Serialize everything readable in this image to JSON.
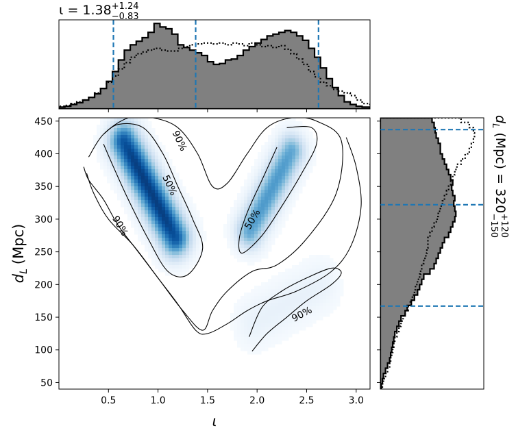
{
  "chart_data": [
    {
      "panel": "top-marginal",
      "type": "histogram",
      "title": "ι = 1.38",
      "title_sup": "+1.24",
      "title_sub": "−0.83",
      "xlim": [
        0.0,
        3.14
      ],
      "bins_x": [
        0.0,
        0.06,
        0.12,
        0.18,
        0.24,
        0.3,
        0.36,
        0.42,
        0.48,
        0.54,
        0.6,
        0.66,
        0.72,
        0.78,
        0.84,
        0.9,
        0.96,
        1.02,
        1.08,
        1.14,
        1.2,
        1.26,
        1.32,
        1.38,
        1.44,
        1.5,
        1.56,
        1.62,
        1.68,
        1.74,
        1.8,
        1.86,
        1.92,
        1.98,
        2.04,
        2.1,
        2.16,
        2.22,
        2.28,
        2.34,
        2.4,
        2.46,
        2.52,
        2.58,
        2.64,
        2.7,
        2.76,
        2.82,
        2.88,
        2.94,
        3.0,
        3.06,
        3.14
      ],
      "series": [
        {
          "fill": "#808080",
          "style": "solid",
          "values": [
            0.02,
            0.03,
            0.05,
            0.07,
            0.1,
            0.13,
            0.17,
            0.23,
            0.31,
            0.42,
            0.55,
            0.66,
            0.72,
            0.76,
            0.8,
            0.86,
            0.96,
            0.92,
            0.9,
            0.84,
            0.72,
            0.69,
            0.66,
            0.63,
            0.6,
            0.53,
            0.5,
            0.51,
            0.55,
            0.56,
            0.6,
            0.66,
            0.7,
            0.74,
            0.78,
            0.82,
            0.84,
            0.86,
            0.88,
            0.86,
            0.82,
            0.77,
            0.68,
            0.58,
            0.46,
            0.34,
            0.24,
            0.15,
            0.08,
            0.05,
            0.03,
            0.02
          ]
        },
        {
          "fill": "none",
          "style": "dotted",
          "values": [
            0.03,
            0.04,
            0.06,
            0.08,
            0.1,
            0.13,
            0.18,
            0.23,
            0.3,
            0.37,
            0.45,
            0.52,
            0.58,
            0.62,
            0.64,
            0.66,
            0.68,
            0.66,
            0.65,
            0.65,
            0.68,
            0.7,
            0.72,
            0.73,
            0.74,
            0.74,
            0.73,
            0.74,
            0.72,
            0.74,
            0.73,
            0.71,
            0.74,
            0.72,
            0.7,
            0.71,
            0.69,
            0.71,
            0.67,
            0.62,
            0.56,
            0.5,
            0.42,
            0.36,
            0.3,
            0.26,
            0.22,
            0.2,
            0.18,
            0.15,
            0.1,
            0.06
          ]
        }
      ],
      "vlines": [
        0.55,
        1.38,
        2.62
      ]
    },
    {
      "panel": "joint-density",
      "type": "heatmap",
      "xlabel": "ι",
      "ylabel": "d",
      "ylabel_sub": "L",
      "ylabel_unit": "(Mpc)",
      "xlim": [
        0.0,
        3.14
      ],
      "ylim": [
        40,
        455
      ],
      "xticks": [
        "0.5",
        "1.0",
        "1.5",
        "2.0",
        "2.5",
        "3.0"
      ],
      "xtick_values": [
        0.5,
        1.0,
        1.5,
        2.0,
        2.5,
        3.0
      ],
      "yticks": [
        "50",
        "100",
        "150",
        "200",
        "250",
        "300",
        "350",
        "400",
        "450"
      ],
      "ytick_values": [
        50,
        100,
        150,
        200,
        250,
        300,
        350,
        400,
        450
      ],
      "colormap": "Blues",
      "modes": [
        {
          "x0": 0.65,
          "y0": 420,
          "x1": 1.18,
          "y1": 270,
          "sigma_along": 0.55,
          "sigma_perp": 0.1,
          "weight": 1.0
        },
        {
          "x0": 2.35,
          "y0": 405,
          "x1": 1.92,
          "y1": 280,
          "sigma_along": 0.5,
          "sigma_perp": 0.09,
          "weight": 0.62
        },
        {
          "x0": 1.95,
          "y0": 140,
          "x1": 2.65,
          "y1": 200,
          "sigma_along": 0.55,
          "sigma_perp": 0.12,
          "weight": 0.08
        }
      ],
      "contours": [
        {
          "label": "90%",
          "points": [
            [
              0.3,
              395
            ],
            [
              0.45,
              430
            ],
            [
              0.7,
              455
            ],
            [
              0.95,
              455
            ],
            [
              1.2,
              440
            ],
            [
              1.4,
              400
            ],
            [
              1.55,
              350
            ],
            [
              1.7,
              355
            ],
            [
              1.9,
              400
            ],
            [
              2.1,
              440
            ],
            [
              2.35,
              455
            ],
            [
              2.6,
              450
            ],
            [
              2.85,
              420
            ],
            [
              2.8,
              340
            ],
            [
              2.5,
              270
            ],
            [
              2.2,
              230
            ],
            [
              1.95,
              220
            ],
            [
              1.7,
              190
            ],
            [
              1.55,
              160
            ],
            [
              1.45,
              130
            ],
            [
              1.25,
              160
            ],
            [
              1.0,
              210
            ],
            [
              0.75,
              260
            ],
            [
              0.5,
              300
            ],
            [
              0.35,
              340
            ],
            [
              0.28,
              370
            ]
          ],
          "label_at": [
            1.22,
            420
          ],
          "label_angle": 65
        },
        {
          "label": "90%",
          "points": [
            [
              0.25,
              380
            ],
            [
              0.3,
              360
            ],
            [
              0.45,
              330
            ],
            [
              0.6,
              290
            ],
            [
              0.8,
              250
            ],
            [
              1.0,
              210
            ],
            [
              1.2,
              170
            ],
            [
              1.38,
              130
            ],
            [
              1.5,
              125
            ],
            [
              1.7,
              140
            ],
            [
              1.9,
              160
            ],
            [
              2.1,
              175
            ],
            [
              2.4,
              190
            ],
            [
              2.75,
              220
            ],
            [
              2.95,
              260
            ],
            [
              3.05,
              320
            ],
            [
              3.0,
              380
            ],
            [
              2.9,
              425
            ]
          ],
          "label_at": [
            0.62,
            290
          ],
          "label_angle": 60
        },
        {
          "label": "50%",
          "points": [
            [
              0.45,
              430
            ],
            [
              0.6,
              445
            ],
            [
              0.85,
              440
            ],
            [
              1.05,
              400
            ],
            [
              1.2,
              350
            ],
            [
              1.35,
              300
            ],
            [
              1.45,
              255
            ],
            [
              1.3,
              215
            ],
            [
              1.1,
              220
            ],
            [
              0.9,
              270
            ],
            [
              0.7,
              330
            ],
            [
              0.55,
              380
            ],
            [
              0.45,
              415
            ]
          ],
          "label_at": [
            1.12,
            352
          ],
          "label_angle": 65
        },
        {
          "label": "50%",
          "points": [
            [
              2.3,
              440
            ],
            [
              2.55,
              440
            ],
            [
              2.6,
              415
            ],
            [
              2.45,
              370
            ],
            [
              2.25,
              320
            ],
            [
              2.05,
              275
            ],
            [
              1.85,
              248
            ],
            [
              1.82,
              270
            ],
            [
              1.9,
              310
            ],
            [
              2.05,
              360
            ],
            [
              2.2,
              410
            ]
          ],
          "label_at": [
            1.95,
            300
          ],
          "label_angle": -60
        },
        {
          "label": "90%",
          "points": [
            [
              1.95,
              98
            ],
            [
              2.1,
              125
            ],
            [
              2.3,
              150
            ],
            [
              2.5,
              175
            ],
            [
              2.75,
              200
            ],
            [
              2.85,
              218
            ],
            [
              2.75,
              225
            ],
            [
              2.5,
              210
            ],
            [
              2.25,
              190
            ],
            [
              2.05,
              165
            ],
            [
              1.92,
              120
            ]
          ],
          "label_at": [
            2.45,
            155
          ],
          "label_angle": -28
        }
      ]
    },
    {
      "panel": "right-marginal",
      "type": "histogram",
      "orientation": "horizontal",
      "title": "d",
      "title_sub_var": "L",
      "title_unit": "(Mpc) = 320",
      "title_sup": "+120",
      "title_sub": "−150",
      "ylim": [
        40,
        455
      ],
      "bins_y": [
        40,
        48,
        56,
        64,
        72,
        80,
        88,
        96,
        104,
        112,
        120,
        128,
        136,
        144,
        152,
        160,
        168,
        176,
        184,
        192,
        200,
        208,
        216,
        224,
        232,
        240,
        248,
        256,
        264,
        272,
        280,
        288,
        296,
        304,
        312,
        320,
        328,
        336,
        344,
        352,
        360,
        368,
        376,
        384,
        392,
        400,
        408,
        416,
        424,
        432,
        440,
        448,
        455
      ],
      "series": [
        {
          "fill": "#808080",
          "style": "solid",
          "values": [
            0.01,
            0.02,
            0.03,
            0.05,
            0.07,
            0.09,
            0.1,
            0.11,
            0.12,
            0.13,
            0.14,
            0.16,
            0.18,
            0.2,
            0.24,
            0.26,
            0.3,
            0.33,
            0.36,
            0.38,
            0.4,
            0.42,
            0.48,
            0.52,
            0.54,
            0.56,
            0.58,
            0.6,
            0.62,
            0.66,
            0.68,
            0.7,
            0.72,
            0.73,
            0.72,
            0.71,
            0.72,
            0.7,
            0.69,
            0.7,
            0.68,
            0.66,
            0.64,
            0.62,
            0.6,
            0.58,
            0.58,
            0.56,
            0.54,
            0.53,
            0.52,
            0.5
          ]
        },
        {
          "fill": "none",
          "style": "dotted",
          "values": [
            0.02,
            0.03,
            0.05,
            0.07,
            0.09,
            0.1,
            0.11,
            0.12,
            0.13,
            0.14,
            0.16,
            0.18,
            0.2,
            0.22,
            0.24,
            0.27,
            0.29,
            0.31,
            0.33,
            0.34,
            0.36,
            0.38,
            0.39,
            0.4,
            0.42,
            0.44,
            0.45,
            0.46,
            0.46,
            0.48,
            0.5,
            0.52,
            0.55,
            0.56,
            0.58,
            0.6,
            0.62,
            0.64,
            0.66,
            0.68,
            0.7,
            0.72,
            0.74,
            0.78,
            0.82,
            0.86,
            0.88,
            0.9,
            0.91,
            0.9,
            0.86,
            0.78
          ]
        }
      ],
      "hlines": [
        167,
        322,
        437
      ]
    }
  ]
}
